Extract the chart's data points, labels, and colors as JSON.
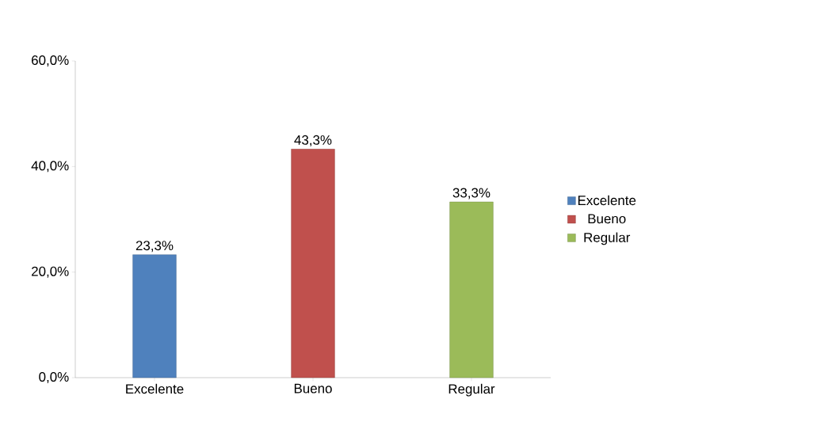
{
  "chart_data": {
    "type": "bar",
    "categories": [
      "Excelente",
      "Bueno",
      "Regular"
    ],
    "series": [
      {
        "name": "Excelente",
        "color": "#4f81bd",
        "values": [
          23.3,
          null,
          null
        ],
        "value_labels": [
          "23,3%",
          null,
          null
        ]
      },
      {
        "name": "Bueno",
        "color": "#c0504d",
        "values": [
          null,
          43.3,
          null
        ],
        "value_labels": [
          null,
          "43,3%",
          null
        ]
      },
      {
        "name": "Regular",
        "color": "#9bbb59",
        "values": [
          null,
          null,
          33.3
        ],
        "value_labels": [
          null,
          null,
          "33,3%"
        ]
      }
    ],
    "ylim": [
      0,
      60
    ],
    "yticks": [
      {
        "value": 0,
        "label": "0,0%"
      },
      {
        "value": 20,
        "label": "20,0%"
      },
      {
        "value": 40,
        "label": "40,0%"
      },
      {
        "value": 60,
        "label": "60,0%"
      }
    ],
    "grid": false,
    "legend": "right"
  }
}
